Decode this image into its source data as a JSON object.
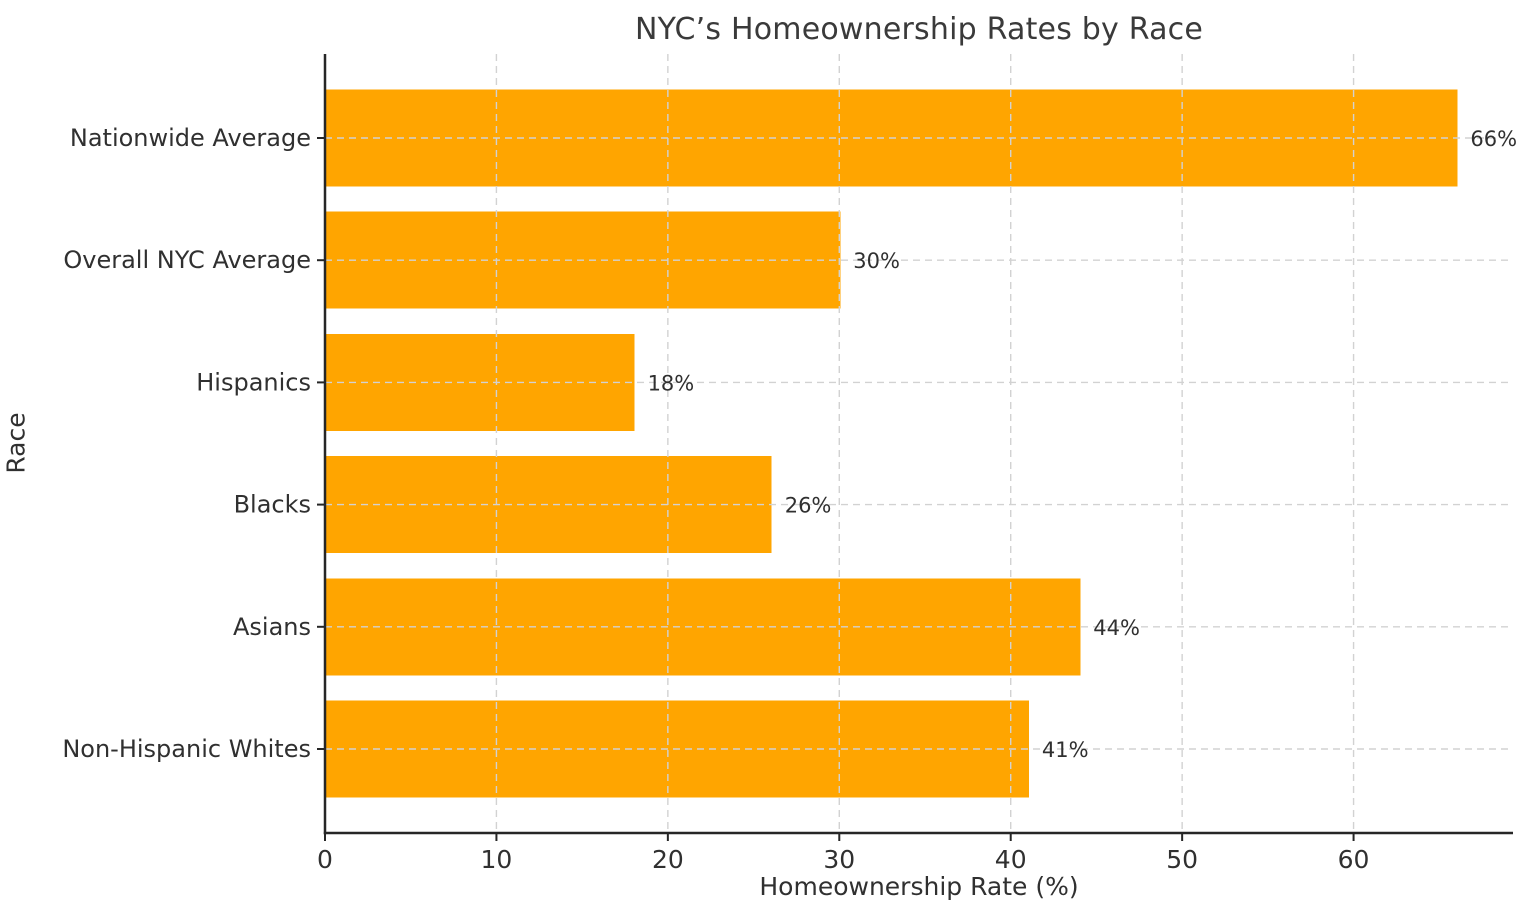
{
  "page": {
    "background": "#ffffff"
  },
  "chart_data": {
    "type": "bar",
    "orientation": "horizontal",
    "title": "NYC’s Homeownership Rates by Race",
    "xlabel": "Homeownership Rate (%)",
    "ylabel": "Race",
    "categories": [
      "Nationwide Average",
      "Overall NYC Average",
      "Hispanics",
      "Blacks",
      "Asians",
      "Non-Hispanic Whites"
    ],
    "values": [
      66,
      30,
      18,
      26,
      44,
      41
    ],
    "value_labels": [
      "66%",
      "30%",
      "18%",
      "26%",
      "44%",
      "41%"
    ],
    "xticks": [
      0,
      10,
      20,
      30,
      40,
      50,
      60
    ],
    "xlim": [
      0,
      69.3
    ],
    "grid": "dashed, both axes, drawn above bars",
    "legend": "none",
    "spines": [
      "left",
      "bottom"
    ],
    "colors": {
      "bar": "#FFA500",
      "text": "#303030",
      "title_text": "#3a3a3a",
      "grid": "#d2d2d2",
      "axis": "#262626"
    }
  }
}
